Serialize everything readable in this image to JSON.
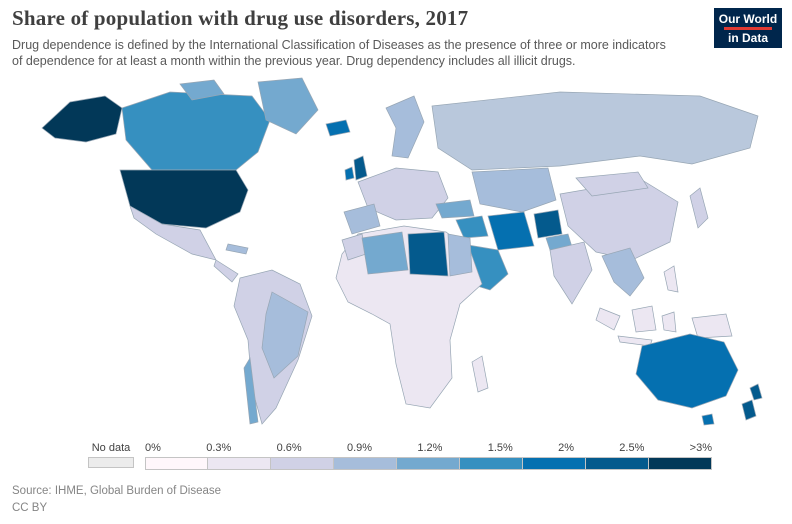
{
  "header": {
    "title": "Share of population with drug use disorders, 2017",
    "subtitle_line1": "Drug dependence is defined by the International Classification of Diseases as the presence of three or more indicators",
    "subtitle_line2": "of dependence for at least a month within the previous year. Drug dependency includes all illicit drugs.",
    "logo": {
      "line1": "Our World",
      "line2": "in Data",
      "bg": "#00264c",
      "accent": "#e03932"
    }
  },
  "legend": {
    "no_data_label": "No data",
    "no_data_color": "#ececec",
    "tick_labels": [
      "0%",
      "0.3%",
      "0.6%",
      "0.9%",
      "1.2%",
      "1.5%",
      "2%",
      "2.5%",
      ">3%"
    ],
    "colors": [
      "#fff7fb",
      "#ece7f2",
      "#d0d1e6",
      "#a6bddb",
      "#74a9cf",
      "#3690c0",
      "#0570b0",
      "#045a8d",
      "#023858"
    ]
  },
  "footer": {
    "source": "Source: IHME, Global Burden of Disease",
    "license": "CC BY"
  },
  "map": {
    "ocean": "#ffffff",
    "border_color": "#97a6b4",
    "colors": {
      "alaska": "#023858",
      "canada": "#3690c0",
      "canada_islands": "#74a9cf",
      "greenland": "#74a9cf",
      "usa": "#023858",
      "mexico": "#d0d1e6",
      "central_america": "#d0d1e6",
      "caribbean": "#a6bddb",
      "south_america": "#d0d1e6",
      "brazil": "#a6bddb",
      "chile": "#74a9cf",
      "iceland": "#0570b0",
      "uk": "#045a8d",
      "ireland": "#0570b0",
      "scandinavia": "#a6bddb",
      "europe": "#d0d1e6",
      "iberia": "#a6bddb",
      "russia": "#b9c8dc",
      "kazakhstan": "#a6bddb",
      "china": "#d0d1e6",
      "mongolia": "#d0d1e6",
      "turkey": "#74a9cf",
      "iraq": "#3690c0",
      "iran": "#0570b0",
      "afghanistan": "#045a8d",
      "pakistan": "#74a9cf",
      "saudi": "#3690c0",
      "africa": "#ece7f2",
      "morocco": "#d0d1e6",
      "algeria": "#74a9cf",
      "libya": "#045a8d",
      "egypt": "#a6bddb",
      "madagascar": "#ece7f2",
      "india": "#d0d1e6",
      "indochina": "#a6bddb",
      "indonesia": "#ece7f2",
      "new_guinea": "#ece7f2",
      "philippines": "#ece7f2",
      "japan": "#d0d1e6",
      "australia": "#0570b0",
      "tasmania": "#0570b0",
      "new_zealand": "#045a8d"
    }
  },
  "chart_data": {
    "type": "choropleth-map",
    "title": "Share of population with drug use disorders, 2017",
    "unit": "% of population",
    "scale_breaks": [
      "0%",
      "0.3%",
      "0.6%",
      "0.9%",
      "1.2%",
      "1.5%",
      "2%",
      "2.5%",
      ">3%"
    ],
    "scale_colors": [
      "#fff7fb",
      "#ece7f2",
      "#d0d1e6",
      "#a6bddb",
      "#74a9cf",
      "#3690c0",
      "#0570b0",
      "#045a8d",
      "#023858"
    ],
    "no_data": {
      "label": "No data",
      "color": "#ececec"
    },
    "regions": [
      {
        "name": "United States",
        "bin": ">3%",
        "color": "#023858"
      },
      {
        "name": "Canada",
        "bin": "1.5-2%",
        "color": "#3690c0"
      },
      {
        "name": "Greenland",
        "bin": "1.2-1.5%",
        "color": "#74a9cf"
      },
      {
        "name": "Mexico",
        "bin": "0.6-0.9%",
        "color": "#d0d1e6"
      },
      {
        "name": "Central America",
        "bin": "0.6-0.9%",
        "color": "#d0d1e6"
      },
      {
        "name": "Caribbean",
        "bin": "0.9-1.2%",
        "color": "#a6bddb"
      },
      {
        "name": "Brazil",
        "bin": "0.9-1.2%",
        "color": "#a6bddb"
      },
      {
        "name": "Chile",
        "bin": "1.2-1.5%",
        "color": "#74a9cf"
      },
      {
        "name": "Rest of South America",
        "bin": "0.6-0.9%",
        "color": "#d0d1e6"
      },
      {
        "name": "Iceland",
        "bin": "2-2.5%",
        "color": "#0570b0"
      },
      {
        "name": "United Kingdom",
        "bin": "2.5-3%",
        "color": "#045a8d"
      },
      {
        "name": "Ireland",
        "bin": "2-2.5%",
        "color": "#0570b0"
      },
      {
        "name": "Scandinavia",
        "bin": "0.9-1.2%",
        "color": "#a6bddb"
      },
      {
        "name": "Western & Central Europe",
        "bin": "0.6-0.9%",
        "color": "#d0d1e6"
      },
      {
        "name": "Spain & Portugal",
        "bin": "0.9-1.2%",
        "color": "#a6bddb"
      },
      {
        "name": "Russia",
        "bin": "0.9-1.2%",
        "color": "#b9c8dc"
      },
      {
        "name": "Kazakhstan & Central Asia",
        "bin": "0.9-1.2%",
        "color": "#a6bddb"
      },
      {
        "name": "China",
        "bin": "0.6-0.9%",
        "color": "#d0d1e6"
      },
      {
        "name": "Mongolia",
        "bin": "0.6-0.9%",
        "color": "#d0d1e6"
      },
      {
        "name": "Japan",
        "bin": "0.6-0.9%",
        "color": "#d0d1e6"
      },
      {
        "name": "India",
        "bin": "0.6-0.9%",
        "color": "#d0d1e6"
      },
      {
        "name": "Turkey",
        "bin": "1.2-1.5%",
        "color": "#74a9cf"
      },
      {
        "name": "Iraq & Levant",
        "bin": "1.5-2%",
        "color": "#3690c0"
      },
      {
        "name": "Iran",
        "bin": "2-2.5%",
        "color": "#0570b0"
      },
      {
        "name": "Afghanistan",
        "bin": "2.5-3%",
        "color": "#045a8d"
      },
      {
        "name": "Pakistan",
        "bin": "1.2-1.5%",
        "color": "#74a9cf"
      },
      {
        "name": "Saudi Arabia & Gulf",
        "bin": "1.5-2%",
        "color": "#3690c0"
      },
      {
        "name": "Morocco",
        "bin": "0.6-0.9%",
        "color": "#d0d1e6"
      },
      {
        "name": "Algeria",
        "bin": "1.2-1.5%",
        "color": "#74a9cf"
      },
      {
        "name": "Libya",
        "bin": "2.5-3%",
        "color": "#045a8d"
      },
      {
        "name": "Egypt",
        "bin": "0.9-1.2%",
        "color": "#a6bddb"
      },
      {
        "name": "Sub-Saharan Africa",
        "bin": "0.3-0.6%",
        "color": "#ece7f2"
      },
      {
        "name": "Madagascar",
        "bin": "0.3-0.6%",
        "color": "#ece7f2"
      },
      {
        "name": "Southeast Asia (Indochina)",
        "bin": "0.9-1.2%",
        "color": "#a6bddb"
      },
      {
        "name": "Indonesia",
        "bin": "0.3-0.6%",
        "color": "#ece7f2"
      },
      {
        "name": "Philippines",
        "bin": "0.3-0.6%",
        "color": "#ece7f2"
      },
      {
        "name": "Papua New Guinea",
        "bin": "0.3-0.6%",
        "color": "#ece7f2"
      },
      {
        "name": "Australia",
        "bin": "2-2.5%",
        "color": "#0570b0"
      },
      {
        "name": "New Zealand",
        "bin": "2.5-3%",
        "color": "#045a8d"
      }
    ]
  }
}
